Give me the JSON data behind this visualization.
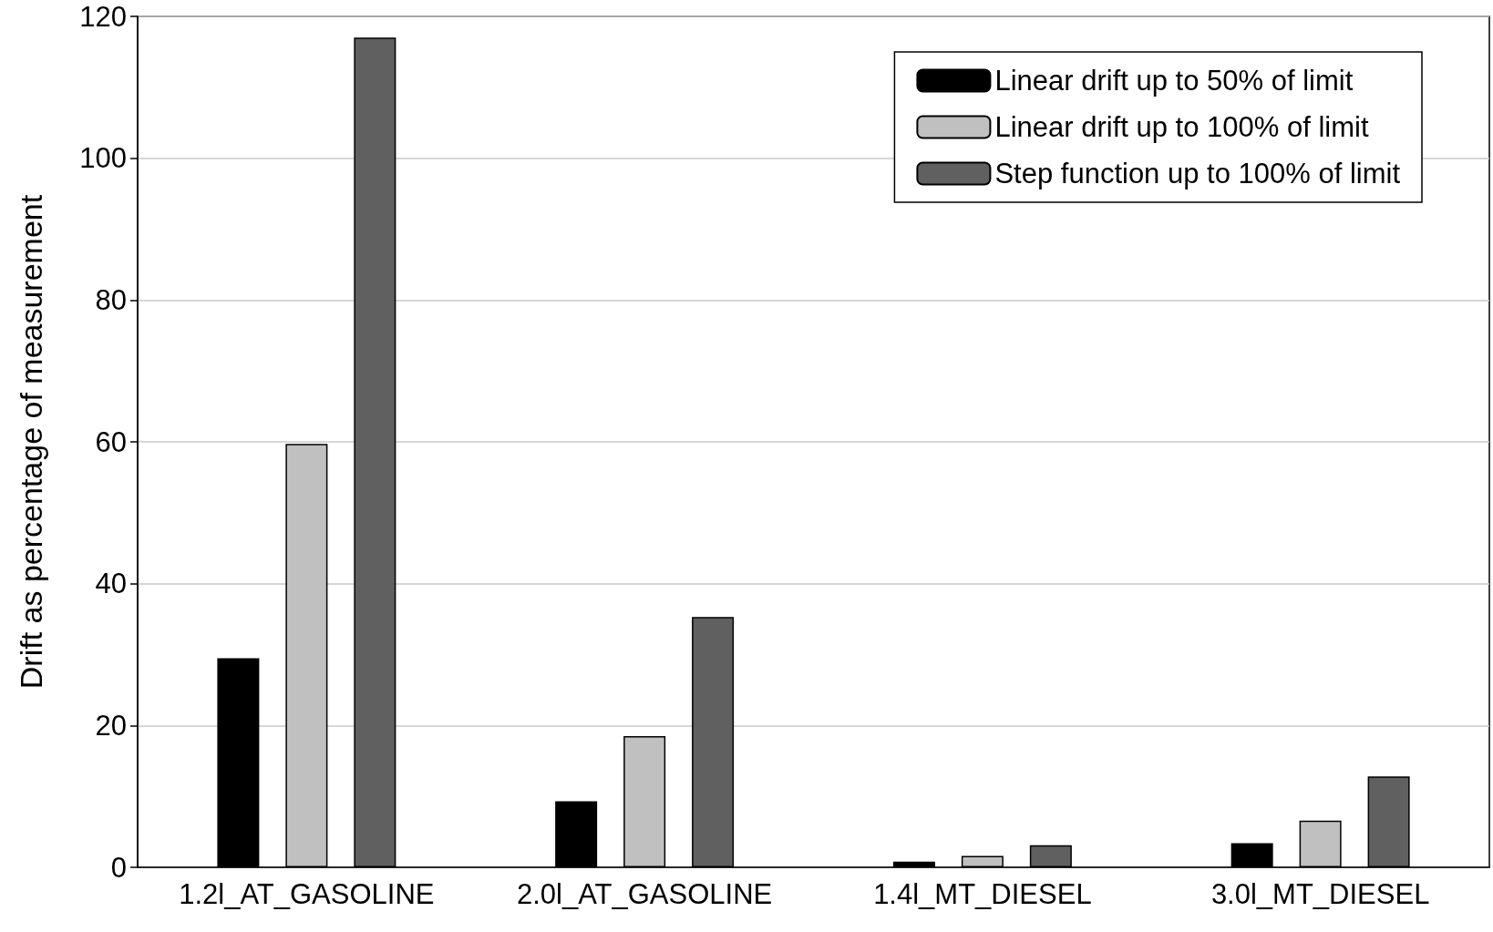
{
  "chart_data": {
    "type": "bar",
    "ylabel": "Drift as percentage of measurement",
    "categories": [
      "1.2l_AT_GASOLINE",
      "2.0l_AT_GASOLINE",
      "1.4l_MT_DIESEL",
      "3.0l_MT_DIESEL"
    ],
    "series": [
      {
        "name": "Linear drift up to 50% of limit",
        "color": "#000000",
        "values": [
          29.5,
          9.3,
          0.8,
          3.4
        ]
      },
      {
        "name": "Linear drift up to 100% of limit",
        "color": "#c0c0c0",
        "values": [
          59.7,
          18.5,
          1.6,
          6.6
        ]
      },
      {
        "name": "Step function up to 100% of limit",
        "color": "#606060",
        "values": [
          117,
          35.3,
          3.1,
          12.8
        ]
      }
    ],
    "ylim": [
      0,
      120
    ],
    "yticks": [
      0,
      20,
      40,
      60,
      80,
      100,
      120
    ],
    "grid": "y",
    "legend": "top right"
  }
}
